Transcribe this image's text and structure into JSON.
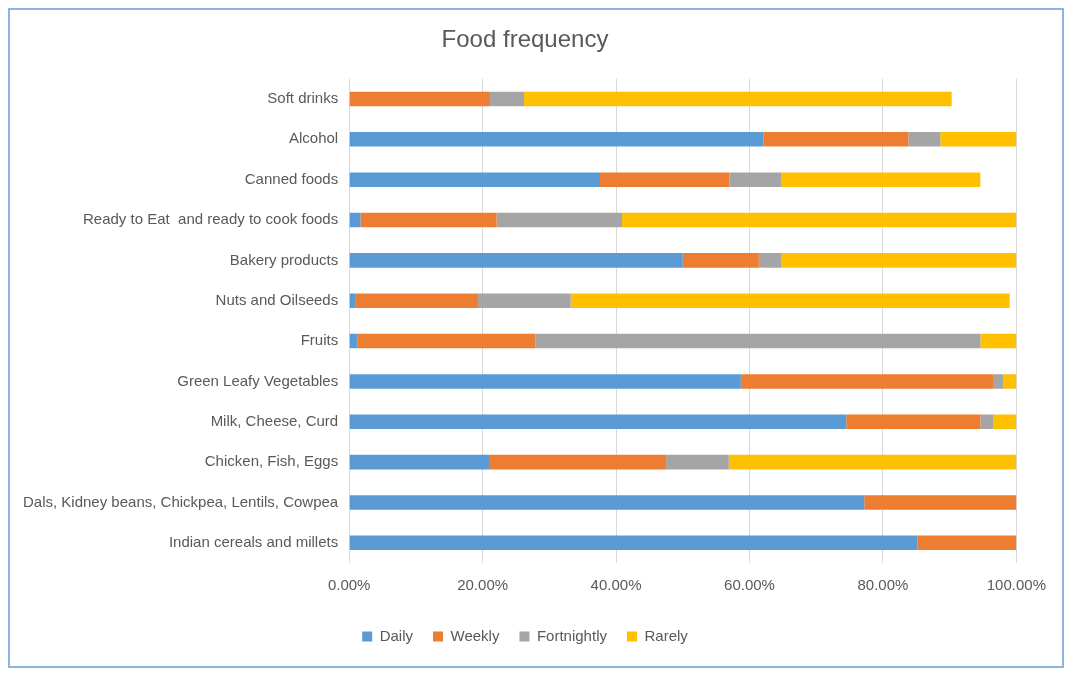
{
  "chart_data": {
    "type": "bar",
    "orientation": "horizontal",
    "stacked": true,
    "title": "Food frequency",
    "categories": [
      "Soft drinks",
      "Alcohol",
      "Canned foods",
      "Ready to Eat  and ready to cook foods",
      "Bakery products",
      "Nuts and Oilseeds",
      "Fruits",
      "Green Leafy Vegetables",
      "Milk, Cheese, Curd",
      "Chicken, Fish, Eggs",
      "Dals, Kidney beans, Chickpea, Lentils, Cowpea",
      "Indian cereals and millets"
    ],
    "series": [
      {
        "name": "Daily",
        "color": "#5b9bd5",
        "values": [
          0,
          62.1,
          37.6,
          1.7,
          50,
          1,
          1.2,
          58.7,
          74.5,
          21.1,
          77.2,
          85.2
        ]
      },
      {
        "name": "Weekly",
        "color": "#ed7d31",
        "values": [
          21.1,
          21.7,
          19.4,
          20.4,
          11.4,
          18.3,
          26.7,
          37.8,
          20.1,
          26.4,
          22.8,
          14.8
        ]
      },
      {
        "name": "Fortnightly",
        "color": "#a5a5a5",
        "values": [
          5.1,
          4.8,
          7.8,
          18.8,
          3.4,
          13.9,
          66.7,
          1.5,
          1.9,
          9.4,
          0,
          0
        ]
      },
      {
        "name": "Rarely",
        "color": "#ffc000",
        "values": [
          64.1,
          11.4,
          29.8,
          59.1,
          35.2,
          65.8,
          5.4,
          2,
          3.5,
          43.1,
          0,
          0
        ]
      }
    ],
    "xlim": [
      0,
      100
    ],
    "xticks": [
      {
        "value": 0,
        "label": "0.00%"
      },
      {
        "value": 20,
        "label": "20.00%"
      },
      {
        "value": 40,
        "label": "40.00%"
      },
      {
        "value": 60,
        "label": "60.00%"
      },
      {
        "value": 80,
        "label": "80.00%"
      },
      {
        "value": 100,
        "label": "100.00%"
      }
    ],
    "grid": "x",
    "legend": "bottom"
  }
}
